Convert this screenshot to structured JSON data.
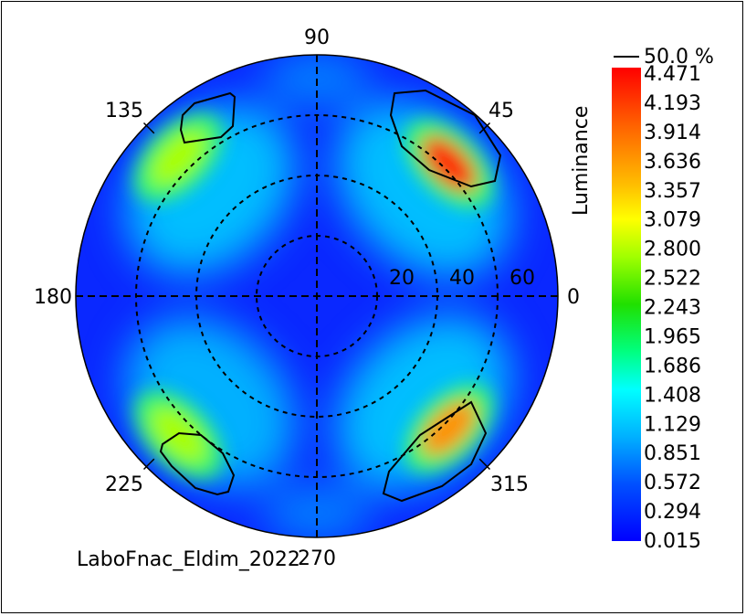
{
  "chart_data": {
    "type": "heatmap",
    "projection": "polar",
    "quantity": "Luminance",
    "footer": "LaboFnac_Eldim_2022",
    "angle_labels": [
      {
        "deg": 0,
        "text": "0"
      },
      {
        "deg": 45,
        "text": "45"
      },
      {
        "deg": 90,
        "text": "90"
      },
      {
        "deg": 135,
        "text": "135"
      },
      {
        "deg": 180,
        "text": "180"
      },
      {
        "deg": 225,
        "text": "225"
      },
      {
        "deg": 270,
        "text": "270"
      },
      {
        "deg": 315,
        "text": "315"
      }
    ],
    "radial_rings": [
      20,
      40,
      60
    ],
    "radial_max": 80,
    "radial_tick_labels": [
      "20",
      "40",
      "60"
    ],
    "contour_label": "50.0 %",
    "colorbar": {
      "title": "Luminance",
      "levels": [
        "4.471",
        "4.193",
        "3.914",
        "3.636",
        "3.357",
        "3.079",
        "2.800",
        "2.522",
        "2.243",
        "1.965",
        "1.686",
        "1.408",
        "1.129",
        "0.851",
        "0.572",
        "0.294",
        "0.015"
      ],
      "min": 0.015,
      "max": 4.471,
      "colors": [
        "#ff0000",
        "#ff4000",
        "#ff8000",
        "#ffc000",
        "#ffff00",
        "#c0ff00",
        "#80ff00",
        "#00e000",
        "#00ff00",
        "#00ff80",
        "#00ffc0",
        "#00ffff",
        "#00c0ff",
        "#0080ff",
        "#0040ff",
        "#0000ff"
      ]
    },
    "hotspots": [
      {
        "azimuth": 45,
        "theta": 62,
        "peak": 4.47
      },
      {
        "azimuth": 135,
        "theta": 65,
        "peak": 2.6
      },
      {
        "azimuth": 225,
        "theta": 65,
        "peak": 2.5
      },
      {
        "azimuth": 315,
        "theta": 62,
        "peak": 3.5
      }
    ],
    "grid": true
  }
}
